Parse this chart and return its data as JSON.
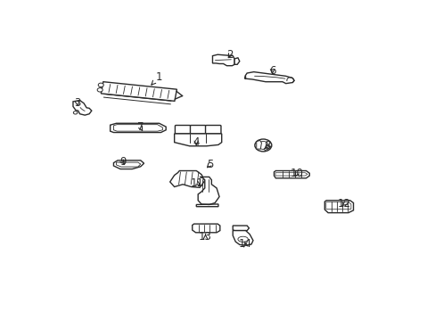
{
  "background_color": "#ffffff",
  "line_color": "#2a2a2a",
  "fig_width": 4.89,
  "fig_height": 3.6,
  "dpi": 100,
  "label_fontsize": 8.5,
  "label_positions": {
    "1": [
      0.31,
      0.845,
      0.285,
      0.81
    ],
    "2": [
      0.52,
      0.935,
      0.51,
      0.91
    ],
    "3": [
      0.068,
      0.74,
      0.072,
      0.715
    ],
    "4": [
      0.42,
      0.58,
      0.42,
      0.555
    ],
    "5": [
      0.46,
      0.49,
      0.445,
      0.468
    ],
    "6": [
      0.645,
      0.87,
      0.645,
      0.845
    ],
    "7": [
      0.255,
      0.64,
      0.265,
      0.615
    ],
    "8": [
      0.63,
      0.565,
      0.617,
      0.545
    ],
    "9": [
      0.202,
      0.5,
      0.213,
      0.482
    ],
    "10": [
      0.718,
      0.455,
      0.706,
      0.432
    ],
    "11": [
      0.422,
      0.415,
      0.44,
      0.4
    ],
    "12": [
      0.858,
      0.33,
      0.845,
      0.316
    ],
    "13": [
      0.447,
      0.198,
      0.447,
      0.22
    ],
    "14": [
      0.565,
      0.168,
      0.562,
      0.188
    ]
  }
}
